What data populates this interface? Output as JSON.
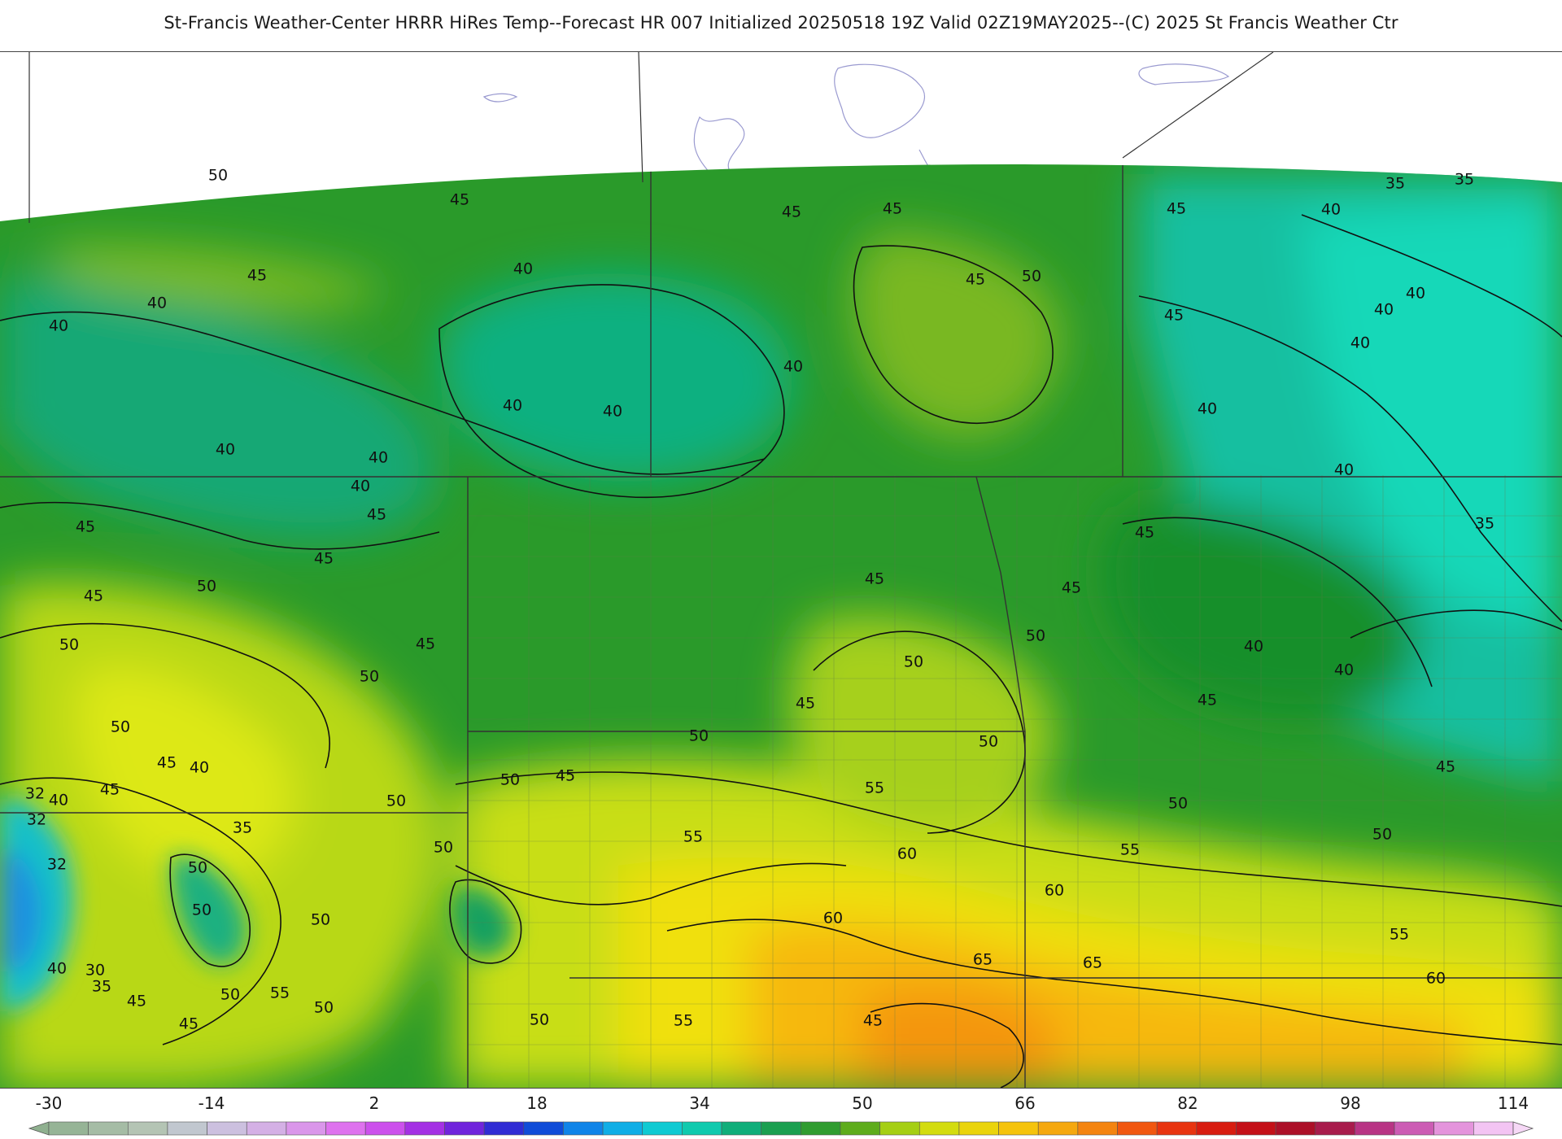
{
  "title": "St-Francis Weather-Center HRRR HiRes Temp--Forecast HR 007 Initialized 20250518 19Z Valid 02Z19MAY2025--(C) 2025 St Francis Weather Ctr",
  "colorbar": {
    "ticks": [
      "-30",
      "-14",
      "2",
      "18",
      "34",
      "50",
      "66",
      "82",
      "98",
      "114"
    ],
    "min": -30,
    "max": 118,
    "step": 4
  },
  "contour_labels": [
    "50",
    "45",
    "40",
    "35",
    "30",
    "32",
    "55",
    "60",
    "65"
  ],
  "colors": {
    "temp_30s": "#18b8a8",
    "temp_35": "#14cfb3",
    "temp_40": "#0fa86b",
    "temp_45": "#1f8f1f",
    "temp_50": "#8cc41f",
    "temp_55": "#e4e80f",
    "temp_60": "#f5c20a",
    "temp_65": "#f59a10",
    "cold_core": "#1f9fe0",
    "contour": "#111111",
    "border": "#333333"
  }
}
